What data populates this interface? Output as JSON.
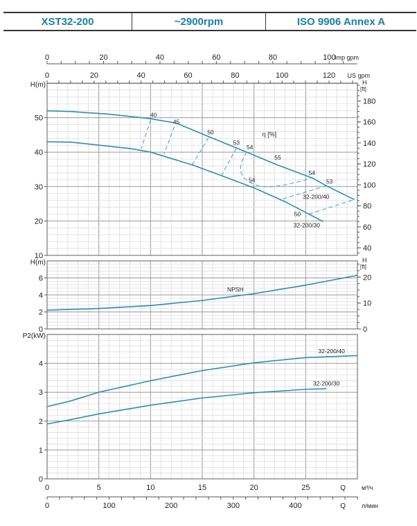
{
  "header": {
    "model": "XST32-200",
    "speed": "~2900rpm",
    "standard": "ISO 9906   Annex A"
  },
  "colors": {
    "curve": "#2b8db5",
    "efficiency": "#6aaed3",
    "header_text": "#1a7fa6"
  },
  "chart_data": [
    {
      "type": "line",
      "ylabel": "H(m)",
      "ylabel_right": "H",
      "ylabel_right_unit": "[ft]",
      "ylim": [
        10,
        60
      ],
      "yticks": [
        10,
        20,
        30,
        40,
        50
      ],
      "yticks_right_ft": [
        40,
        60,
        80,
        100,
        120,
        140,
        160,
        180
      ],
      "xlim": [
        0,
        30
      ],
      "grid": true,
      "top_axes": {
        "imp_label": "Imp gpm",
        "imp_ticks": [
          0,
          20,
          40,
          60,
          80,
          100
        ],
        "us_label": "US gpm",
        "us_ticks": [
          0,
          20,
          40,
          60,
          80,
          100,
          120
        ]
      },
      "series": [
        {
          "name": "32-200/40",
          "x": [
            0,
            2.3,
            6,
            10,
            12.5,
            15.7,
            19.3,
            22,
            25.7,
            27,
            29.7
          ],
          "y": [
            52,
            51.8,
            51,
            49.7,
            48.4,
            44.4,
            40,
            36.6,
            32.4,
            30.2,
            26.2
          ]
        },
        {
          "name": "32-200/30",
          "x": [
            0,
            2.3,
            8.1,
            10,
            14.1,
            17,
            20,
            23,
            26.7
          ],
          "y": [
            43,
            42.9,
            41,
            40,
            36.2,
            33,
            29.6,
            25.6,
            19.8
          ]
        }
      ],
      "efficiency_label": "η [%]",
      "efficiency_curves": [
        {
          "label": "40",
          "x": [
            10,
            9.1
          ],
          "y": [
            49.4,
            41
          ]
        },
        {
          "label": "45",
          "x": [
            12.3,
            11.3
          ],
          "y": [
            47.4,
            39.4
          ]
        },
        {
          "label": "50",
          "x": [
            15.6,
            14
          ],
          "y": [
            44.2,
            36.2
          ]
        },
        {
          "label": "53",
          "x": [
            18.3,
            16.9
          ],
          "y": [
            41.2,
            33.4
          ]
        },
        {
          "label": "54",
          "x": [
            19.3,
            18.4,
            19.3,
            21.9,
            25.5
          ],
          "y": [
            40,
            35.8,
            31,
            29.2,
            32.4
          ]
        },
        {
          "label": "53",
          "x": [
            22.8,
            27
          ],
          "y": [
            26.4,
            30.2
          ]
        },
        {
          "label": "50",
          "x": [
            25.3,
            29.7
          ],
          "y": [
            22,
            26.2
          ]
        }
      ],
      "point_labels": [
        {
          "text": "40",
          "x": 10.3,
          "y": 50.2
        },
        {
          "text": "45",
          "x": 12.5,
          "y": 48.2
        },
        {
          "text": "50",
          "x": 15.8,
          "y": 45.2
        },
        {
          "text": "53",
          "x": 18.3,
          "y": 42.2
        },
        {
          "text": "54",
          "x": 19.6,
          "y": 40.8
        },
        {
          "text": "55",
          "x": 22.3,
          "y": 37.8
        },
        {
          "text": "54",
          "x": 25.6,
          "y": 33.4
        },
        {
          "text": "53",
          "x": 27.3,
          "y": 30.9
        },
        {
          "text": "54",
          "x": 19.8,
          "y": 31.3
        },
        {
          "text": "50",
          "x": 24.2,
          "y": 21.4
        },
        {
          "text": "32-200/40",
          "x": 26,
          "y": 26.4
        },
        {
          "text": "32-200/30",
          "x": 25.1,
          "y": 18.2
        }
      ]
    },
    {
      "type": "line",
      "ylabel": "H(m)",
      "ylabel_right": "H",
      "ylabel_right_unit": "[ft]",
      "ylim": [
        0,
        8
      ],
      "yticks": [
        0,
        2,
        4,
        6
      ],
      "yticks_right_ft": [
        0,
        10,
        20
      ],
      "xlim": [
        0,
        30
      ],
      "grid": true,
      "series": [
        {
          "name": "NPSH",
          "x": [
            0,
            2.3,
            5,
            10,
            15,
            20,
            25,
            30
          ],
          "y": [
            2.2,
            2.3,
            2.4,
            2.75,
            3.35,
            4.15,
            5.15,
            6.3
          ]
        }
      ],
      "point_labels": [
        {
          "text": "NPSH",
          "x": 18.2,
          "y": 4.4
        }
      ]
    },
    {
      "type": "line",
      "ylabel": "P2(kW)",
      "ylim": [
        0,
        5
      ],
      "yticks": [
        0,
        1,
        2,
        3,
        4
      ],
      "xlim": [
        0,
        30
      ],
      "grid": true,
      "xticks": [
        0,
        5,
        10,
        15,
        20,
        25
      ],
      "xlabel": "Q",
      "xunit": "м³/ч",
      "x2_ticks": [
        0,
        100,
        200,
        300,
        400
      ],
      "x2label": "Q",
      "x2unit": "л/мин",
      "series": [
        {
          "name": "32-200/40",
          "x": [
            0,
            2.3,
            5,
            10,
            15,
            20,
            25,
            30
          ],
          "y": [
            2.5,
            2.7,
            3.0,
            3.4,
            3.75,
            4.02,
            4.2,
            4.27
          ]
        },
        {
          "name": "32-200/30",
          "x": [
            0,
            2.3,
            5,
            10,
            15,
            20,
            25,
            27
          ],
          "y": [
            1.9,
            2.05,
            2.25,
            2.55,
            2.8,
            2.98,
            3.1,
            3.12
          ]
        }
      ],
      "point_labels": [
        {
          "text": "32-200/40",
          "x": 27.5,
          "y": 4.35
        },
        {
          "text": "32-200/30",
          "x": 27,
          "y": 3.23
        }
      ]
    }
  ]
}
